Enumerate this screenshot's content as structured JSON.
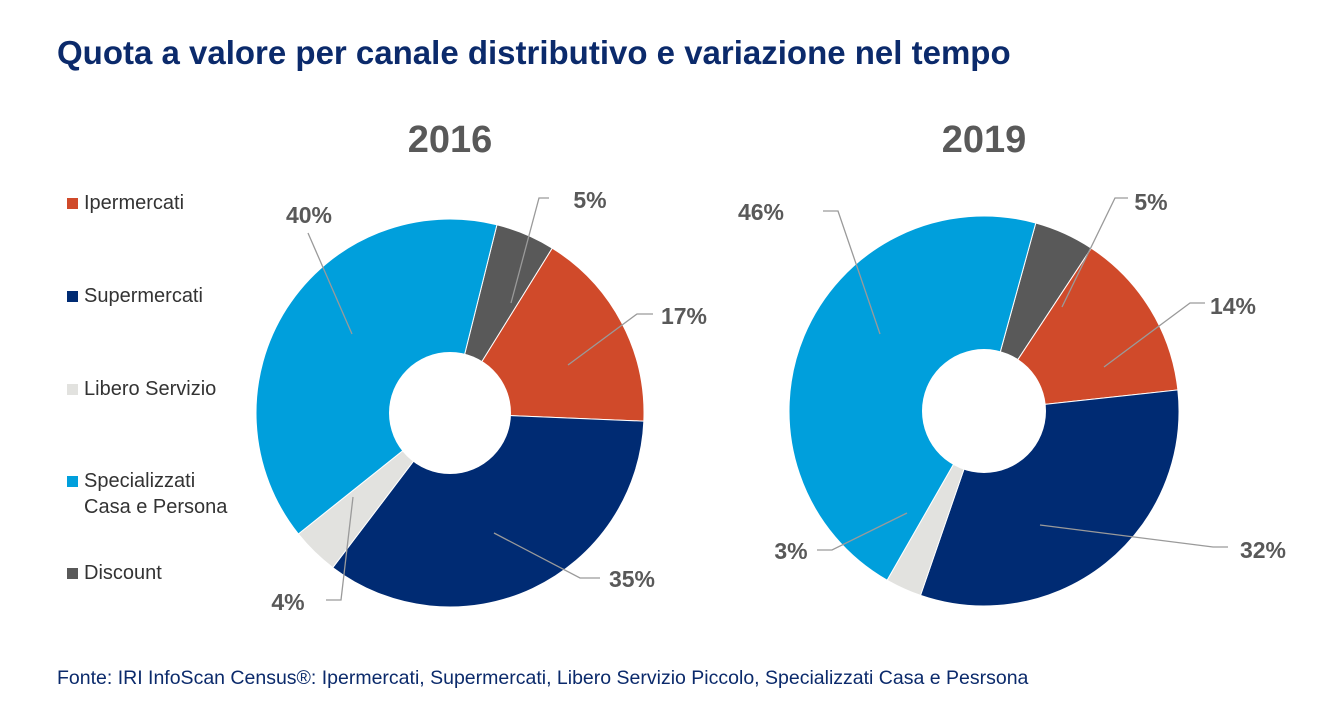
{
  "title": "Quota a valore per canale distributivo e variazione nel tempo",
  "source": "Fonte: IRI InfoScan Census®: Ipermercati, Supermercati, Libero Servizio Piccolo, Specializzati Casa e Pesrsona",
  "legend": [
    {
      "label": "Ipermercati",
      "color": "#d04a2a"
    },
    {
      "label": "Supermercati",
      "color": "#002b73"
    },
    {
      "label": "Libero Servizio",
      "color": "#e2e2df"
    },
    {
      "label": "Specializzati\nCasa e Persona",
      "color": "#009fdc"
    },
    {
      "label": "Discount",
      "color": "#595959"
    }
  ],
  "chart_data": [
    {
      "type": "pie",
      "title": "2016",
      "hole": true,
      "categories": [
        "Discount",
        "Ipermercati",
        "Supermercati",
        "Libero Servizio",
        "Specializzati Casa e Persona"
      ],
      "values": [
        5,
        17,
        35,
        4,
        40
      ],
      "labels": [
        "5%",
        "17%",
        "35%",
        "4%",
        "40%"
      ],
      "colors": [
        "#595959",
        "#d04a2a",
        "#002b73",
        "#e2e2df",
        "#009fdc"
      ]
    },
    {
      "type": "pie",
      "title": "2019",
      "hole": true,
      "categories": [
        "Discount",
        "Ipermercati",
        "Supermercati",
        "Libero Servizio",
        "Specializzati Casa e Persona"
      ],
      "values": [
        5,
        14,
        32,
        3,
        46
      ],
      "labels": [
        "5%",
        "14%",
        "32%",
        "3%",
        "46%"
      ],
      "colors": [
        "#595959",
        "#d04a2a",
        "#002b73",
        "#e2e2df",
        "#009fdc"
      ]
    }
  ]
}
